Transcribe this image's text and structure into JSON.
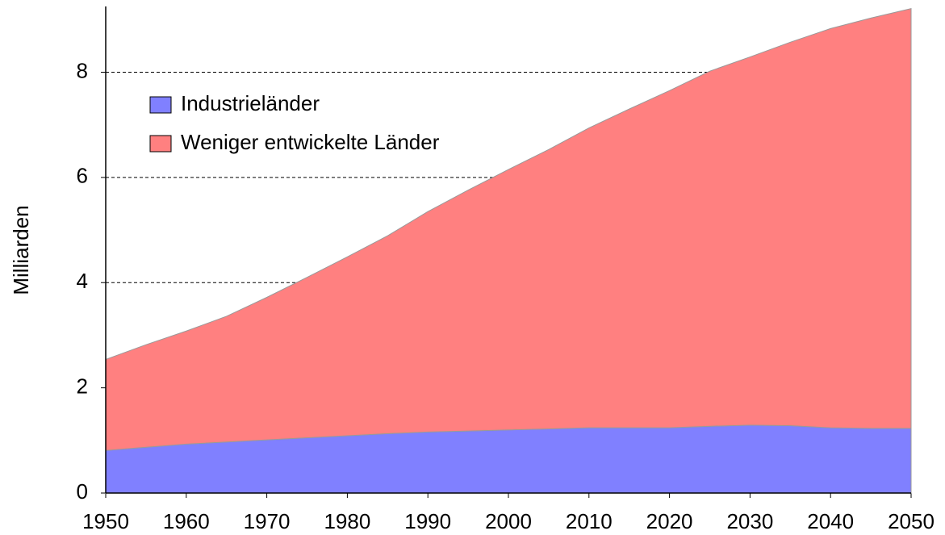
{
  "chart_data": {
    "type": "stacked_area",
    "y_label": "Milliarden",
    "x": [
      1950,
      1955,
      1960,
      1965,
      1970,
      1975,
      1980,
      1985,
      1990,
      1995,
      2000,
      2005,
      2010,
      2015,
      2020,
      2025,
      2030,
      2035,
      2040,
      2045,
      2050
    ],
    "series": [
      {
        "name": "Industrieländer",
        "color": "#8080ff",
        "values": [
          0.81,
          0.87,
          0.93,
          0.97,
          1.01,
          1.05,
          1.09,
          1.13,
          1.16,
          1.18,
          1.2,
          1.22,
          1.24,
          1.24,
          1.24,
          1.27,
          1.29,
          1.28,
          1.24,
          1.23,
          1.23
        ]
      },
      {
        "name": "Weniger entwickelte Länder",
        "color": "#ff8080",
        "values": [
          1.73,
          1.95,
          2.15,
          2.39,
          2.71,
          3.05,
          3.4,
          3.76,
          4.19,
          4.58,
          4.95,
          5.31,
          5.7,
          6.06,
          6.41,
          6.75,
          7.0,
          7.29,
          7.59,
          7.8,
          7.98
        ]
      }
    ],
    "xlim": [
      1950,
      2050
    ],
    "xticks": [
      1950,
      1960,
      1970,
      1980,
      1990,
      2000,
      2010,
      2020,
      2030,
      2040,
      2050
    ],
    "ylim": [
      0,
      9.25
    ],
    "yticks": [
      0,
      2,
      4,
      6,
      8
    ],
    "grid": true,
    "legend": "upper left"
  }
}
